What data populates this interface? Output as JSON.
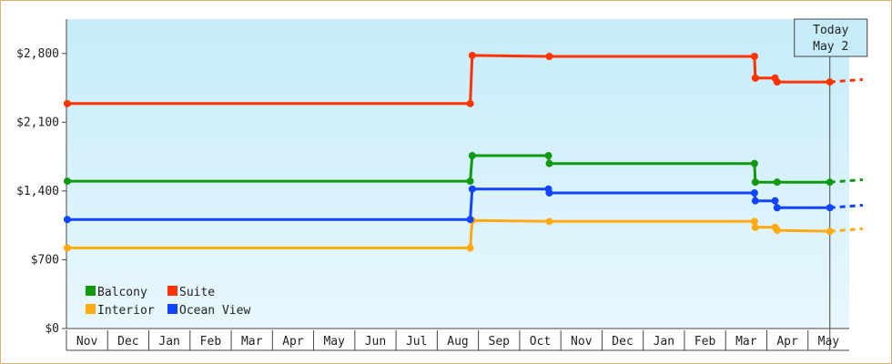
{
  "chart_data": {
    "type": "line",
    "title": "",
    "xlabel": "",
    "ylabel": "",
    "ylim": [
      0,
      3150
    ],
    "y_ticks": [
      0,
      700,
      1400,
      2100,
      2800
    ],
    "y_tick_labels": [
      "$0",
      "$700",
      "$1,400",
      "$2,100",
      "$2,800"
    ],
    "months": [
      "Nov",
      "Dec",
      "Jan",
      "Feb",
      "Mar",
      "Apr",
      "May",
      "Jun",
      "Jul",
      "Aug",
      "Sep",
      "Oct",
      "Nov",
      "Dec",
      "Jan",
      "Feb",
      "Mar",
      "Apr",
      "May"
    ],
    "x_range_months": [
      -0.5,
      18.5
    ],
    "today_label": [
      "Today",
      "May 2"
    ],
    "today_x": 18.03,
    "line_end_x": 18.83,
    "legend_position": "bottom-left",
    "grid": false,
    "series": [
      {
        "name": "Balcony",
        "color": "#119911",
        "points": [
          [
            -0.48,
            1500
          ],
          [
            9.3,
            1500
          ],
          [
            9.35,
            1760
          ],
          [
            11.2,
            1760
          ],
          [
            11.22,
            1680
          ],
          [
            16.2,
            1680
          ],
          [
            16.22,
            1490
          ],
          [
            16.75,
            1490
          ],
          [
            18.03,
            1490
          ]
        ]
      },
      {
        "name": "Suite",
        "color": "#ff3300",
        "points": [
          [
            -0.48,
            2290
          ],
          [
            9.3,
            2290
          ],
          [
            9.35,
            2780
          ],
          [
            11.22,
            2770
          ],
          [
            16.2,
            2770
          ],
          [
            16.22,
            2550
          ],
          [
            16.7,
            2550
          ],
          [
            16.75,
            2510
          ],
          [
            18.03,
            2510
          ]
        ]
      },
      {
        "name": "Interior",
        "color": "#ffaa11",
        "points": [
          [
            -0.48,
            820
          ],
          [
            9.3,
            820
          ],
          [
            9.35,
            1100
          ],
          [
            11.22,
            1090
          ],
          [
            16.2,
            1090
          ],
          [
            16.22,
            1030
          ],
          [
            16.7,
            1030
          ],
          [
            16.75,
            1000
          ],
          [
            18.03,
            990
          ]
        ]
      },
      {
        "name": "Ocean View",
        "color": "#1144ff",
        "points": [
          [
            -0.48,
            1110
          ],
          [
            9.3,
            1110
          ],
          [
            9.35,
            1420
          ],
          [
            11.2,
            1420
          ],
          [
            11.22,
            1380
          ],
          [
            16.2,
            1380
          ],
          [
            16.22,
            1300
          ],
          [
            16.7,
            1300
          ],
          [
            16.75,
            1230
          ],
          [
            18.03,
            1230
          ]
        ]
      }
    ]
  }
}
